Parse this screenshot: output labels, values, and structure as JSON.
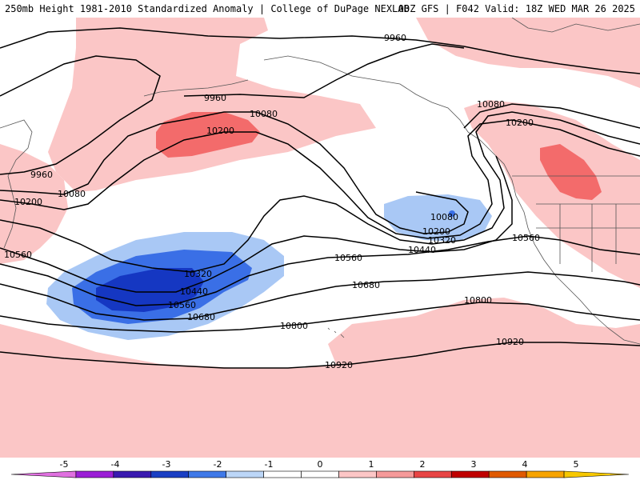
{
  "header": {
    "title": "250mb Height 1981-2010 Standardized Anomaly | College of DuPage NEXLAB",
    "run_info": "00Z GFS | F042 Valid: 18Z WED MAR 26 2025"
  },
  "map": {
    "contour_labels": [
      {
        "id": "9960-north",
        "text": "9960"
      },
      {
        "id": "9960-alaska",
        "text": "9960"
      },
      {
        "id": "9960-west",
        "text": "9960"
      },
      {
        "id": "10080-bering",
        "text": "10080"
      },
      {
        "id": "10080-west",
        "text": "10080"
      },
      {
        "id": "10080-bc",
        "text": "10080"
      },
      {
        "id": "10080-low",
        "text": "10080"
      },
      {
        "id": "10200-ridge",
        "text": "10200"
      },
      {
        "id": "10200-west",
        "text": "10200"
      },
      {
        "id": "10200-bc",
        "text": "10200"
      },
      {
        "id": "10200-low",
        "text": "10200"
      },
      {
        "id": "10320-low",
        "text": "10320"
      },
      {
        "id": "10320-trough",
        "text": "10320"
      },
      {
        "id": "10440-low",
        "text": "10440"
      },
      {
        "id": "10440-trough",
        "text": "10440"
      },
      {
        "id": "10560-west",
        "text": "10560"
      },
      {
        "id": "10560-mid",
        "text": "10560"
      },
      {
        "id": "10560-trough",
        "text": "10560"
      },
      {
        "id": "10560-east",
        "text": "10560"
      },
      {
        "id": "10680-mid",
        "text": "10680"
      },
      {
        "id": "10680-trough",
        "text": "10680"
      },
      {
        "id": "10800-mid",
        "text": "10800"
      },
      {
        "id": "10800-east",
        "text": "10800"
      },
      {
        "id": "10920-south",
        "text": "10920"
      },
      {
        "id": "10920-east",
        "text": "10920"
      }
    ],
    "anomaly_colors": {
      "neg3": "#1537c2",
      "neg2": "#3a6fe6",
      "neg1": "#a9c8f5",
      "pos1": "#fbc6c6",
      "pos2": "#f36b6b"
    }
  },
  "colorbar": {
    "labels": [
      "-5",
      "-4",
      "-3",
      "-2",
      "-1",
      "0",
      "1",
      "2",
      "3",
      "4",
      "5"
    ],
    "colors": [
      "#e070e0",
      "#9b1fd6",
      "#3a1ab0",
      "#1a3fc4",
      "#3f79e8",
      "#bcd6f7",
      "#ffffff",
      "#ffffff",
      "#fcc6c6",
      "#f59a9a",
      "#e84545",
      "#c00000",
      "#e05a00",
      "#f7a400",
      "#f7c800"
    ]
  }
}
